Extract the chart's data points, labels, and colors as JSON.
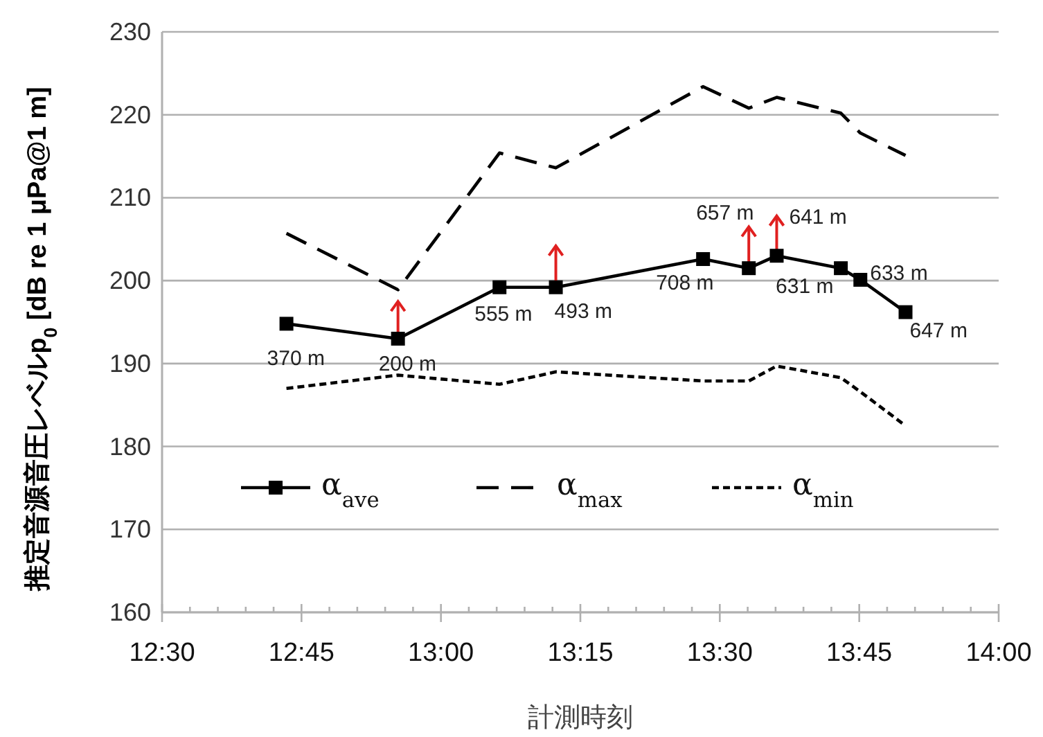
{
  "chart_data": {
    "type": "line",
    "xlabel": "計測時刻",
    "ylabel": "推定音源音圧レベルp$_{0}$ [dB re 1 μPa@1 m]",
    "xlim": [
      12.5,
      14
    ],
    "xticks": [
      {
        "value": 12.5,
        "label": "12:30"
      },
      {
        "value": 12.55,
        "label": null
      },
      {
        "value": 12.6,
        "label": null
      },
      {
        "value": 12.65,
        "label": null
      },
      {
        "value": 12.7,
        "label": null
      },
      {
        "value": 12.75,
        "label": "12:45"
      },
      {
        "value": 12.8,
        "label": null
      },
      {
        "value": 12.85,
        "label": null
      },
      {
        "value": 12.9,
        "label": null
      },
      {
        "value": 12.95,
        "label": null
      },
      {
        "value": 13,
        "label": "13:00"
      },
      {
        "value": 13.05,
        "label": null
      },
      {
        "value": 13.1,
        "label": null
      },
      {
        "value": 13.15,
        "label": null
      },
      {
        "value": 13.2,
        "label": null
      },
      {
        "value": 13.25,
        "label": "13:15"
      },
      {
        "value": 13.3,
        "label": null
      },
      {
        "value": 13.35,
        "label": null
      },
      {
        "value": 13.4,
        "label": null
      },
      {
        "value": 13.45,
        "label": null
      },
      {
        "value": 13.5,
        "label": "13:30"
      },
      {
        "value": 13.55,
        "label": null
      },
      {
        "value": 13.6,
        "label": null
      },
      {
        "value": 13.65,
        "label": null
      },
      {
        "value": 13.7,
        "label": null
      },
      {
        "value": 13.75,
        "label": "13:45"
      },
      {
        "value": 13.8,
        "label": null
      },
      {
        "value": 13.85,
        "label": null
      },
      {
        "value": 13.9,
        "label": null
      },
      {
        "value": 13.95,
        "label": null
      },
      {
        "value": 14,
        "label": "14:00"
      }
    ],
    "ylim": [
      160,
      230
    ],
    "yticks": [
      160,
      170,
      180,
      190,
      200,
      210,
      220,
      230
    ],
    "grid": "y",
    "legend": "bottom",
    "x": [
      12.723,
      12.923,
      13.105,
      13.206,
      13.47,
      13.552,
      13.602,
      13.717,
      13.752,
      13.833
    ],
    "series": [
      {
        "name": "α$_{ave}$",
        "color": "#000000",
        "marker": "square",
        "line_style": "solid",
        "values": [
          194.8,
          193.0,
          199.2,
          199.2,
          202.6,
          201.5,
          203.0,
          201.5,
          200.1,
          196.2
        ],
        "errors": [
          null,
          [
            193.0,
            197.5
          ],
          null,
          [
            199.2,
            204.2
          ],
          null,
          [
            201.5,
            206.5
          ],
          [
            203.0,
            207.8
          ],
          null,
          null,
          null
        ]
      },
      {
        "name": "α$_{max}$",
        "color": "#000000",
        "marker": "none",
        "line_style": "dashed",
        "values": [
          205.7,
          198.9,
          215.4,
          213.6,
          223.4,
          220.8,
          222.1,
          220.2,
          217.8,
          215.1
        ]
      },
      {
        "name": "α$_{min}$",
        "color": "#000000",
        "marker": "none",
        "line_style": "dotted",
        "values": [
          187.0,
          188.6,
          187.5,
          189.0,
          187.9,
          187.9,
          189.7,
          188.3,
          186.6,
          182.5
        ]
      }
    ],
    "annotations": [
      {
        "text": "370 m",
        "x": 12.723,
        "y": 194.8
      },
      {
        "text": "200 m",
        "x": 12.923,
        "y": 193.0
      },
      {
        "text": "555 m",
        "x": 13.105,
        "y": 199.2
      },
      {
        "text": "493 m",
        "x": 13.206,
        "y": 199.2
      },
      {
        "text": "708 m",
        "x": 13.47,
        "y": 202.6
      },
      {
        "text": "657 m",
        "x": 13.552,
        "y": 201.5
      },
      {
        "text": "641 m",
        "x": 13.602,
        "y": 203.0
      },
      {
        "text": "631 m",
        "x": 13.717,
        "y": 201.5
      },
      {
        "text": "633 m",
        "x": 13.752,
        "y": 200.1
      },
      {
        "text": "647 m",
        "x": 13.833,
        "y": 196.2
      }
    ]
  }
}
